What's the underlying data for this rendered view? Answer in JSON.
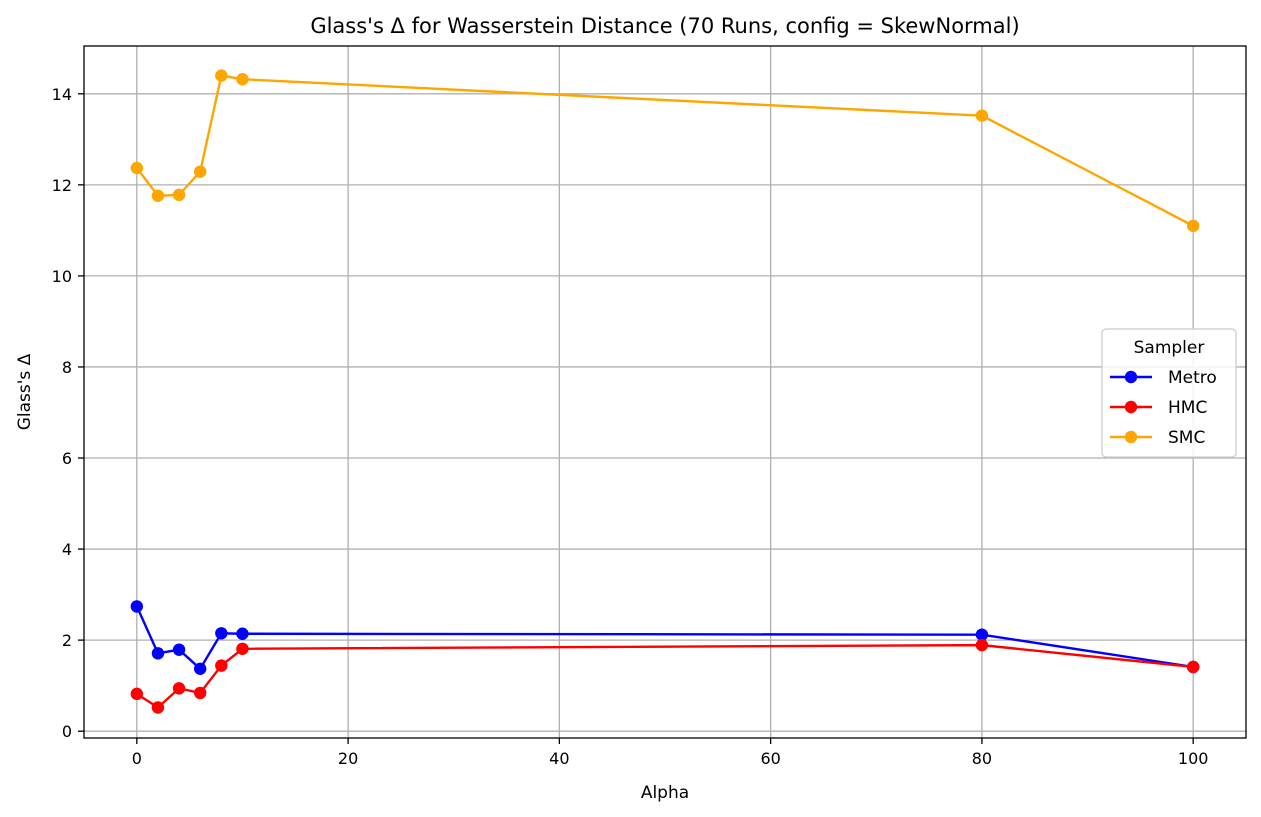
{
  "chart_data": {
    "type": "line",
    "title": "Glass's Δ for Wasserstein Distance (70 Runs, config = SkewNormal)",
    "xlabel": "Alpha",
    "ylabel": "Glass's Δ",
    "x": [
      0,
      2,
      4,
      6,
      8,
      10,
      80,
      100
    ],
    "xlim": [
      -5,
      105
    ],
    "ylim": [
      -0.15,
      15.05
    ],
    "xticks": [
      0,
      20,
      40,
      60,
      80,
      100
    ],
    "xtick_labels": [
      "0",
      "20",
      "40",
      "60",
      "80",
      "100"
    ],
    "yticks": [
      0,
      2,
      4,
      6,
      8,
      10,
      12,
      14
    ],
    "ytick_labels": [
      "0",
      "2",
      "4",
      "6",
      "8",
      "10",
      "12",
      "14"
    ],
    "grid": true,
    "legend": {
      "title": "Sampler",
      "placement": "center-right"
    },
    "series": [
      {
        "name": "Metro",
        "color": "#0000ff",
        "values": [
          2.74,
          1.71,
          1.79,
          1.37,
          2.15,
          2.14,
          2.12,
          1.41
        ]
      },
      {
        "name": "HMC",
        "color": "#ff0000",
        "values": [
          0.82,
          0.52,
          0.94,
          0.84,
          1.44,
          1.81,
          1.89,
          1.41
        ]
      },
      {
        "name": "SMC",
        "color": "#ffa500",
        "values": [
          12.37,
          11.76,
          11.78,
          12.29,
          14.4,
          14.32,
          13.52,
          11.1
        ]
      }
    ]
  }
}
